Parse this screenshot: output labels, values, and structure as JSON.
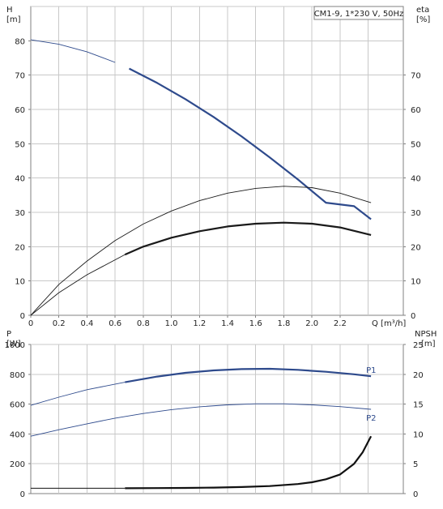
{
  "chart_data": [
    {
      "type": "line",
      "title": "CM1-9, 1*230 V, 50Hz",
      "xlabel": "Q [m³/h]",
      "ylabel": "H",
      "ylabel_unit": "[m]",
      "y2label": "eta",
      "y2label_unit": "[%]",
      "xlim": [
        0,
        2.65
      ],
      "ylim": [
        0,
        90
      ],
      "y2lim": [
        0,
        90
      ],
      "xticks": [
        "0",
        "0.2",
        "0.4",
        "0.6",
        "0.8",
        "1.0",
        "1.2",
        "1.4",
        "1.6",
        "1.8",
        "2.0",
        "2.2"
      ],
      "yticks": [
        "0",
        "10",
        "20",
        "30",
        "40",
        "50",
        "60",
        "70",
        "80"
      ],
      "y2ticks": [
        "0",
        "10",
        "20",
        "30",
        "40",
        "50",
        "60",
        "70"
      ],
      "grid": true,
      "series": [
        {
          "role": "head",
          "axis": "left",
          "color": "#2e4a8c",
          "x": [
            0,
            0.2,
            0.4,
            0.6,
            0.7,
            0.9,
            1.1,
            1.3,
            1.5,
            1.7,
            1.9,
            2.1,
            2.3,
            2.42
          ],
          "y": [
            80.3,
            79.0,
            76.8,
            73.7,
            71.9,
            67.7,
            63.0,
            57.8,
            52.1,
            46.0,
            39.6,
            32.8,
            31.8,
            28.0
          ],
          "thin_until_x": 0.67
        },
        {
          "role": "eta-upper",
          "axis": "right",
          "color": "#1a1a1a",
          "x": [
            0,
            0.2,
            0.4,
            0.6,
            0.8,
            1.0,
            1.2,
            1.4,
            1.6,
            1.8,
            2.0,
            2.2,
            2.42
          ],
          "y": [
            0,
            9.0,
            15.8,
            21.8,
            26.6,
            30.4,
            33.4,
            35.6,
            37.0,
            37.6,
            37.2,
            35.6,
            32.8
          ],
          "thin_until_x": 2.42
        },
        {
          "role": "eta-lower",
          "axis": "right",
          "color": "#1a1a1a",
          "x": [
            0,
            0.2,
            0.4,
            0.67,
            0.8,
            1.0,
            1.2,
            1.4,
            1.6,
            1.8,
            2.0,
            2.2,
            2.42
          ],
          "y": [
            0,
            6.6,
            11.8,
            17.7,
            20.0,
            22.6,
            24.5,
            25.9,
            26.7,
            27.0,
            26.7,
            25.6,
            23.4
          ],
          "thin_until_x": 0.67
        }
      ]
    },
    {
      "type": "line",
      "ylabel": "P",
      "ylabel_unit": "[W]",
      "y2label": "NPSH",
      "y2label_unit": "[m]",
      "xlim": [
        0,
        2.65
      ],
      "ylim": [
        0,
        1000
      ],
      "y2lim": [
        0,
        25
      ],
      "yticks": [
        "0",
        "200",
        "400",
        "600",
        "800",
        "1000"
      ],
      "y2ticks": [
        "0",
        "5",
        "10",
        "15",
        "20",
        "25"
      ],
      "grid": true,
      "series": [
        {
          "name": "P1",
          "axis": "left",
          "color": "#2e4a8c",
          "x": [
            0,
            0.2,
            0.4,
            0.67,
            0.9,
            1.1,
            1.3,
            1.5,
            1.7,
            1.9,
            2.1,
            2.3,
            2.42
          ],
          "y": [
            592,
            647,
            697,
            747,
            785,
            810,
            826,
            835,
            837,
            830,
            817,
            800,
            787
          ],
          "thin_until_x": 0.67
        },
        {
          "name": "P2",
          "axis": "left",
          "color": "#2e4a8c",
          "x": [
            0,
            0.2,
            0.4,
            0.6,
            0.8,
            1.0,
            1.2,
            1.4,
            1.6,
            1.8,
            2.0,
            2.2,
            2.42
          ],
          "y": [
            385,
            428,
            468,
            506,
            537,
            563,
            582,
            595,
            602,
            602,
            595,
            583,
            565
          ],
          "thin_until_x": 2.42
        },
        {
          "role": "npsh",
          "axis": "right",
          "color": "#111111",
          "x": [
            0.67,
            0.9,
            1.1,
            1.3,
            1.5,
            1.7,
            1.9,
            2.0,
            2.1,
            2.2,
            2.3,
            2.36,
            2.42
          ],
          "y": [
            0.9,
            0.92,
            0.95,
            1.0,
            1.1,
            1.27,
            1.6,
            1.9,
            2.4,
            3.2,
            5.0,
            6.9,
            9.6
          ],
          "thin_until_x": 0.67
        }
      ]
    }
  ]
}
